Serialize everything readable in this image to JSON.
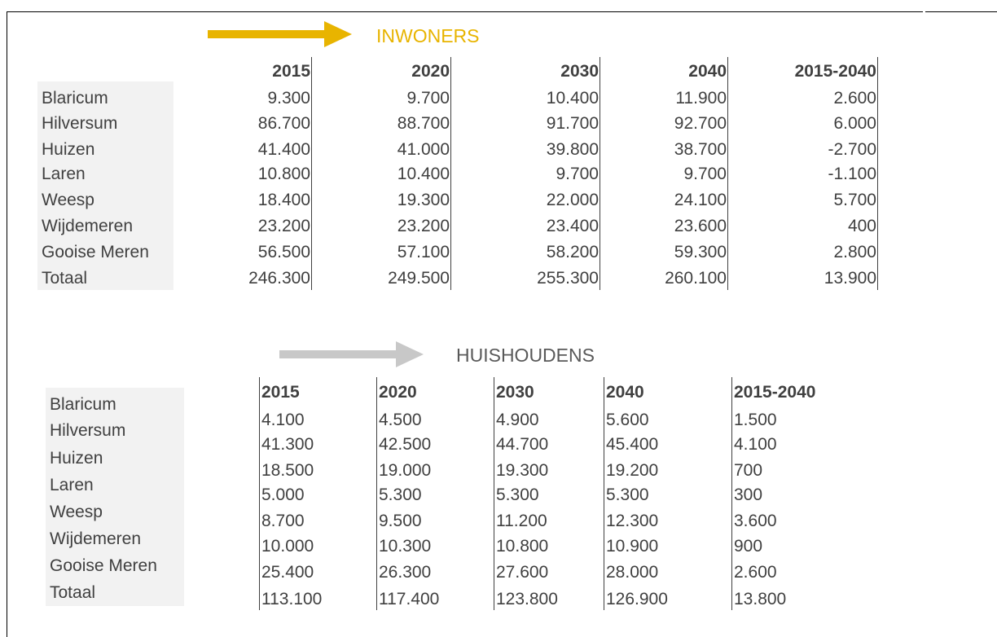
{
  "tables": [
    {
      "title": "INWONERS",
      "columns": [
        "2015",
        "2020",
        "2030",
        "2040",
        "2015-2040"
      ],
      "rows": [
        {
          "label": "Blaricum",
          "values": [
            "9.300",
            "9.700",
            "10.400",
            "11.900",
            "2.600"
          ]
        },
        {
          "label": "Hilversum",
          "values": [
            "86.700",
            "88.700",
            "91.700",
            "92.700",
            "6.000"
          ]
        },
        {
          "label": "Huizen",
          "values": [
            "41.400",
            "41.000",
            "39.800",
            "38.700",
            "-2.700"
          ]
        },
        {
          "label": "Laren",
          "values": [
            "10.800",
            "10.400",
            "9.700",
            "9.700",
            "-1.100"
          ]
        },
        {
          "label": "Weesp",
          "values": [
            "18.400",
            "19.300",
            "22.000",
            "24.100",
            "5.700"
          ]
        },
        {
          "label": "Wijdemeren",
          "values": [
            "23.200",
            "23.200",
            "23.400",
            "23.600",
            "400"
          ]
        },
        {
          "label": "Gooise Meren",
          "values": [
            "56.500",
            "57.100",
            "58.200",
            "59.300",
            "2.800"
          ]
        },
        {
          "label": "Totaal",
          "values": [
            "246.300",
            "249.500",
            "255.300",
            "260.100",
            "13.900"
          ]
        }
      ]
    },
    {
      "title": "HUISHOUDENS",
      "columns": [
        "2015",
        "2020",
        "2030",
        "2040",
        "2015-2040"
      ],
      "rows": [
        {
          "label": "Blaricum",
          "values": [
            "4.100",
            "4.500",
            "4.900",
            "5.600",
            "1.500"
          ]
        },
        {
          "label": "Hilversum",
          "values": [
            "41.300",
            "42.500",
            "44.700",
            "45.400",
            "4.100"
          ]
        },
        {
          "label": "Huizen",
          "values": [
            "18.500",
            "19.000",
            "19.300",
            "19.200",
            "700"
          ]
        },
        {
          "label": "Laren",
          "values": [
            "5.000",
            "5.300",
            "5.300",
            "5.300",
            "300"
          ]
        },
        {
          "label": "Weesp",
          "values": [
            "8.700",
            "9.500",
            "11.200",
            "12.300",
            "3.600"
          ]
        },
        {
          "label": "Wijdemeren",
          "values": [
            "10.000",
            "10.300",
            "10.800",
            "10.900",
            "900"
          ]
        },
        {
          "label": "Gooise Meren",
          "values": [
            "25.400",
            "26.300",
            "27.600",
            "28.000",
            "2.600"
          ]
        },
        {
          "label": "Totaal",
          "values": [
            "113.100",
            "117.400",
            "123.800",
            "126.900",
            "13.800"
          ]
        }
      ]
    }
  ]
}
